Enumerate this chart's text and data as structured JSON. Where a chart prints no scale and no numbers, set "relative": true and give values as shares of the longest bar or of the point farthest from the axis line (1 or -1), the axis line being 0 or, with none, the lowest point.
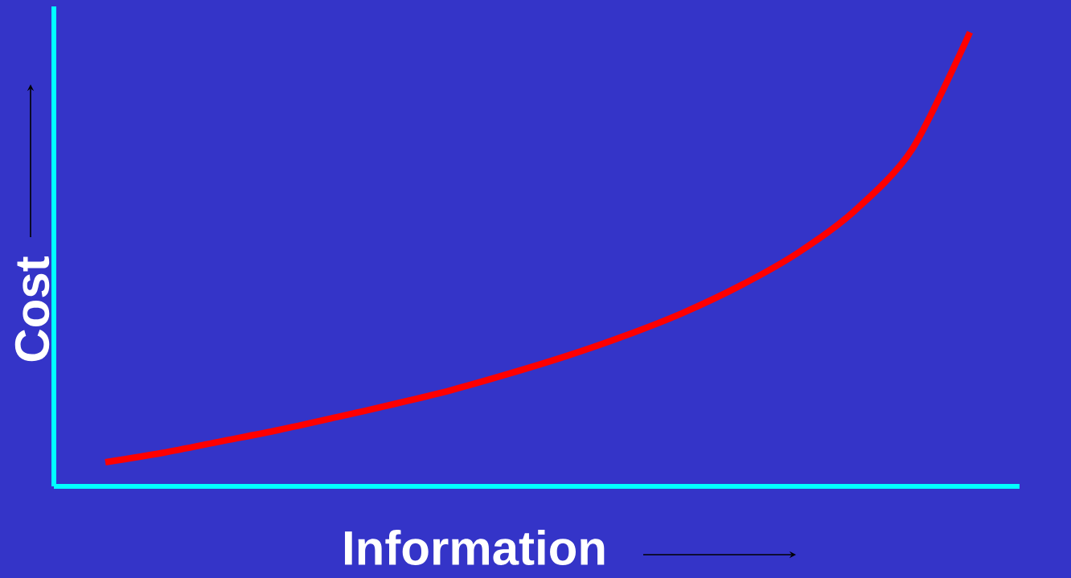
{
  "chart_data": {
    "type": "line",
    "xlabel": "Information",
    "ylabel": "Cost",
    "relative": true,
    "marker": "none",
    "categories": [
      null,
      null,
      null,
      null,
      null,
      null,
      null,
      null,
      null,
      null,
      null,
      null,
      null,
      null,
      null,
      null
    ],
    "series": [
      {
        "color": "#ff0000",
        "values": [
          0.053,
          0.074,
          0.099,
          0.124,
          0.152,
          0.181,
          0.212,
          0.248,
          0.287,
          0.331,
          0.381,
          0.441,
          0.513,
          0.607,
          0.743,
          1
        ]
      }
    ]
  }
}
